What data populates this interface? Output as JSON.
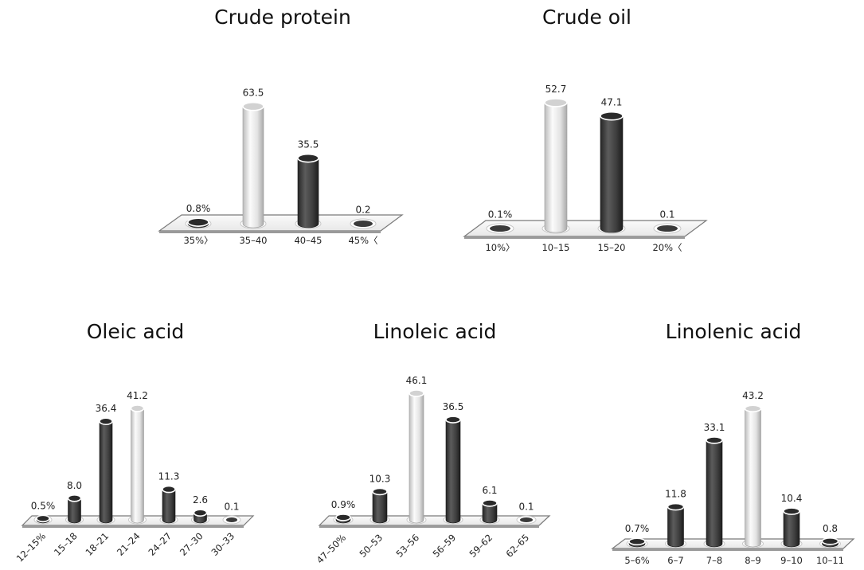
{
  "colors": {
    "light": "#e6e6e6",
    "dark": "#3d3d3d",
    "platform_edge": "#7a7a7a"
  },
  "chart_data": [
    {
      "type": "bar",
      "title": "Crude protein",
      "categories": [
        "35%〉",
        "35–40",
        "40–45",
        "45%〈"
      ],
      "value_labels": [
        "0.8%",
        "63.5",
        "35.5",
        "0.2"
      ],
      "values": [
        0.8,
        63.5,
        35.5,
        0.2
      ],
      "highlight": [
        false,
        true,
        false,
        false
      ],
      "ylim": [
        0,
        70
      ],
      "grid": false
    },
    {
      "type": "bar",
      "title": "Crude oil",
      "categories": [
        "10%〉",
        "10–15",
        "15–20",
        "20%〈"
      ],
      "value_labels": [
        "0.1%",
        "52.7",
        "47.1",
        "0.1"
      ],
      "values": [
        0.1,
        52.7,
        47.1,
        0.1
      ],
      "highlight": [
        false,
        true,
        false,
        false
      ],
      "ylim": [
        0,
        60
      ],
      "grid": false
    },
    {
      "type": "bar",
      "title": "Oleic acid",
      "categories": [
        "12–15%",
        "15–18",
        "18–21",
        "21–24",
        "24–27",
        "27–30",
        "30–33"
      ],
      "value_labels": [
        "0.5%",
        "8.0",
        "36.4",
        "41.2",
        "11.3",
        "2.6",
        "0.1"
      ],
      "values": [
        0.5,
        8.0,
        36.4,
        41.2,
        11.3,
        2.6,
        0.1
      ],
      "highlight": [
        false,
        false,
        false,
        true,
        false,
        false,
        false
      ],
      "ylim": [
        0,
        45
      ],
      "grid": false
    },
    {
      "type": "bar",
      "title": "Linoleic acid",
      "categories": [
        "47–50%",
        "50–53",
        "53–56",
        "56–59",
        "59–62",
        "62–65"
      ],
      "value_labels": [
        "0.9%",
        "10.3",
        "46.1",
        "36.5",
        "6.1",
        "0.1"
      ],
      "values": [
        0.9,
        10.3,
        46.1,
        36.5,
        6.1,
        0.1
      ],
      "highlight": [
        false,
        false,
        true,
        false,
        false,
        false
      ],
      "ylim": [
        0,
        50
      ],
      "grid": false
    },
    {
      "type": "bar",
      "title": "Linolenic acid",
      "categories": [
        "5–6%",
        "6–7",
        "7–8",
        "8–9",
        "9–10",
        "10–11"
      ],
      "value_labels": [
        "0.7%",
        "11.8",
        "33.1",
        "43.2",
        "10.4",
        "0.8"
      ],
      "values": [
        0.7,
        11.8,
        33.1,
        43.2,
        10.4,
        0.8
      ],
      "highlight": [
        false,
        false,
        false,
        true,
        false,
        false
      ],
      "ylim": [
        0,
        50
      ],
      "grid": false
    }
  ]
}
